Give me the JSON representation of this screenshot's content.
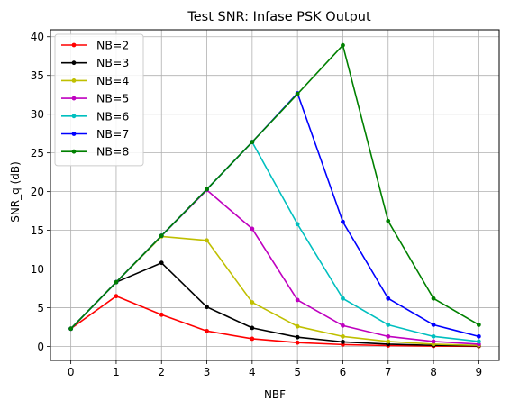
{
  "chart_data": {
    "type": "line",
    "title": "Test SNR: Infase PSK Output",
    "xlabel": "NBF",
    "ylabel": "SNR_q (dB)",
    "xlim": [
      -0.45,
      9.45
    ],
    "ylim": [
      -1.8,
      40.9
    ],
    "x": [
      0,
      1,
      2,
      3,
      4,
      5,
      6,
      7,
      8,
      9
    ],
    "xticks": [
      0,
      1,
      2,
      3,
      4,
      5,
      6,
      7,
      8,
      9
    ],
    "yticks": [
      0,
      5,
      10,
      15,
      20,
      25,
      30,
      35,
      40
    ],
    "grid": true,
    "legend_position": "top-left",
    "series": [
      {
        "name": "NB=2",
        "color": "#ff0000",
        "values": [
          2.3,
          6.5,
          4.1,
          2.0,
          1.0,
          0.5,
          0.25,
          0.12,
          0.06,
          0.03
        ]
      },
      {
        "name": "NB=3",
        "color": "#000000",
        "values": [
          2.3,
          8.3,
          10.8,
          5.1,
          2.4,
          1.2,
          0.6,
          0.3,
          0.15,
          0.08
        ]
      },
      {
        "name": "NB=4",
        "color": "#bfbf00",
        "values": [
          2.3,
          8.3,
          14.2,
          13.7,
          5.7,
          2.6,
          1.3,
          0.65,
          0.3,
          0.15
        ]
      },
      {
        "name": "NB=5",
        "color": "#bf00bf",
        "values": [
          2.3,
          8.3,
          14.3,
          20.2,
          15.2,
          6.0,
          2.7,
          1.3,
          0.65,
          0.3
        ]
      },
      {
        "name": "NB=6",
        "color": "#00bfbf",
        "values": [
          2.3,
          8.3,
          14.3,
          20.3,
          26.4,
          15.8,
          6.2,
          2.8,
          1.3,
          0.65
        ]
      },
      {
        "name": "NB=7",
        "color": "#0000ff",
        "values": [
          2.3,
          8.3,
          14.3,
          20.3,
          26.4,
          32.7,
          16.1,
          6.2,
          2.8,
          1.3
        ]
      },
      {
        "name": "NB=8",
        "color": "#008000",
        "values": [
          2.3,
          8.3,
          14.3,
          20.3,
          26.4,
          32.6,
          38.9,
          16.2,
          6.2,
          2.8
        ]
      }
    ]
  }
}
